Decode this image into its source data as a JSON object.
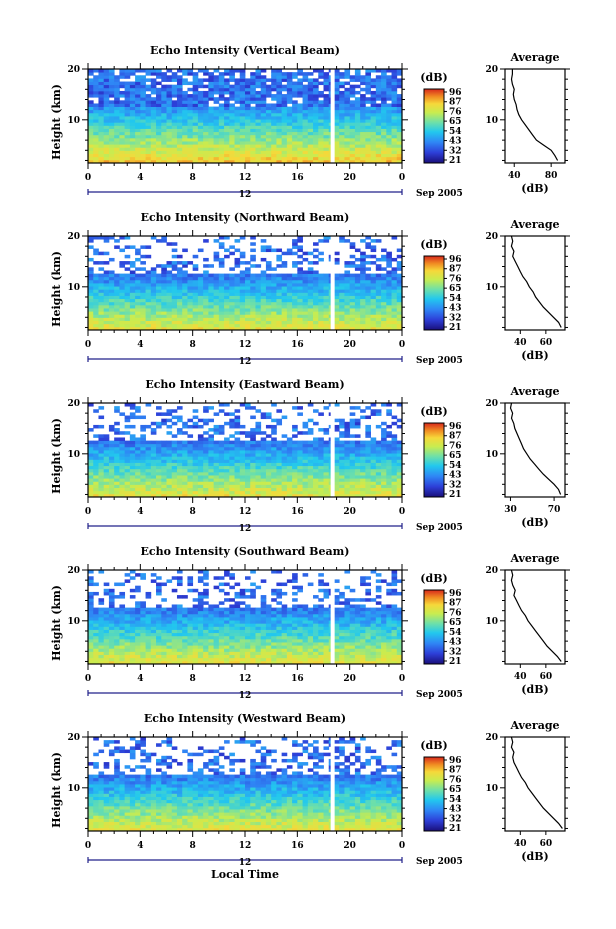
{
  "chart_data": [
    {
      "type": "heatmap",
      "title": "Echo Intensity (Vertical Beam)",
      "ylabel": "Height (km)",
      "y_ticks": [
        "20",
        "10"
      ],
      "x_ticks": [
        "0",
        "4",
        "8",
        "12",
        "16",
        "20",
        "0"
      ],
      "x_ylim_hours": [
        0,
        24
      ],
      "y_lim_km": [
        1.5,
        20
      ],
      "date_tick": "12",
      "date_label": "Sep 2005",
      "colorbar": {
        "label": "(dB)",
        "ticks": [
          "96",
          "87",
          "76",
          "65",
          "54",
          "43",
          "32",
          "21"
        ],
        "range": [
          21,
          96
        ]
      },
      "gap_hour": 18.7,
      "profile": {
        "title": "Average",
        "xlabel": "(dB)",
        "x_ticks": [
          "40",
          "80"
        ],
        "xlim": [
          30,
          95
        ],
        "points": [
          [
            87,
            2
          ],
          [
            84,
            3
          ],
          [
            80,
            4
          ],
          [
            72,
            5
          ],
          [
            64,
            6
          ],
          [
            60,
            7
          ],
          [
            56,
            8
          ],
          [
            52,
            9
          ],
          [
            48,
            10
          ],
          [
            45,
            11
          ],
          [
            43,
            12
          ],
          [
            42,
            13
          ],
          [
            40,
            14
          ],
          [
            39,
            15
          ],
          [
            40,
            16
          ],
          [
            38,
            17
          ],
          [
            37,
            18
          ],
          [
            38,
            19
          ],
          [
            38,
            20
          ]
        ]
      }
    },
    {
      "type": "heatmap",
      "title": "Echo Intensity (Northward Beam)",
      "ylabel": "Height (km)",
      "y_ticks": [
        "20",
        "10"
      ],
      "x_ticks": [
        "0",
        "4",
        "8",
        "12",
        "16",
        "20",
        "0"
      ],
      "x_ylim_hours": [
        0,
        24
      ],
      "y_lim_km": [
        1.5,
        20
      ],
      "date_tick": "12",
      "date_label": "Sep 2005",
      "colorbar": {
        "label": "(dB)",
        "ticks": [
          "96",
          "87",
          "76",
          "65",
          "54",
          "43",
          "32",
          "21"
        ],
        "range": [
          21,
          96
        ]
      },
      "gap_hour": 18.7,
      "profile": {
        "title": "Average",
        "xlabel": "(dB)",
        "x_ticks": [
          "40",
          "60"
        ],
        "xlim": [
          28,
          75
        ],
        "points": [
          [
            72,
            2
          ],
          [
            70,
            3
          ],
          [
            66,
            4
          ],
          [
            62,
            5
          ],
          [
            58,
            6
          ],
          [
            55,
            7
          ],
          [
            52,
            8
          ],
          [
            50,
            9
          ],
          [
            47,
            10
          ],
          [
            45,
            11
          ],
          [
            42,
            12
          ],
          [
            40,
            13
          ],
          [
            38,
            14
          ],
          [
            36,
            15
          ],
          [
            34,
            16
          ],
          [
            35,
            17
          ],
          [
            33,
            18
          ],
          [
            34,
            19
          ],
          [
            33,
            20
          ]
        ]
      }
    },
    {
      "type": "heatmap",
      "title": "Echo Intensity (Eastward Beam)",
      "ylabel": "Height (km)",
      "y_ticks": [
        "20",
        "10"
      ],
      "x_ticks": [
        "0",
        "4",
        "8",
        "12",
        "16",
        "20",
        "0"
      ],
      "x_ylim_hours": [
        0,
        24
      ],
      "y_lim_km": [
        1.5,
        20
      ],
      "date_tick": "12",
      "date_label": "Sep 2005",
      "colorbar": {
        "label": "(dB)",
        "ticks": [
          "96",
          "87",
          "76",
          "65",
          "54",
          "43",
          "32",
          "21"
        ],
        "range": [
          21,
          96
        ]
      },
      "gap_hour": 18.7,
      "profile": {
        "title": "Average",
        "xlabel": "(dB)",
        "x_ticks": [
          "30",
          "70"
        ],
        "xlim": [
          25,
          80
        ],
        "points": [
          [
            76,
            2
          ],
          [
            74,
            3
          ],
          [
            70,
            4
          ],
          [
            65,
            5
          ],
          [
            60,
            6
          ],
          [
            56,
            7
          ],
          [
            52,
            8
          ],
          [
            48,
            9
          ],
          [
            45,
            10
          ],
          [
            42,
            11
          ],
          [
            40,
            12
          ],
          [
            38,
            13
          ],
          [
            36,
            14
          ],
          [
            34,
            15
          ],
          [
            33,
            16
          ],
          [
            31,
            17
          ],
          [
            32,
            18
          ],
          [
            30,
            19
          ],
          [
            31,
            20
          ]
        ]
      }
    },
    {
      "type": "heatmap",
      "title": "Echo Intensity (Southward Beam)",
      "ylabel": "Height (km)",
      "y_ticks": [
        "20",
        "10"
      ],
      "x_ticks": [
        "0",
        "4",
        "8",
        "12",
        "16",
        "20",
        "0"
      ],
      "x_ylim_hours": [
        0,
        24
      ],
      "y_lim_km": [
        1.5,
        20
      ],
      "date_tick": "12",
      "date_label": "Sep 2005",
      "colorbar": {
        "label": "(dB)",
        "ticks": [
          "96",
          "87",
          "76",
          "65",
          "54",
          "43",
          "32",
          "21"
        ],
        "range": [
          21,
          96
        ]
      },
      "gap_hour": 18.7,
      "profile": {
        "title": "Average",
        "xlabel": "(dB)",
        "x_ticks": [
          "40",
          "60"
        ],
        "xlim": [
          28,
          75
        ],
        "points": [
          [
            72,
            2
          ],
          [
            69,
            3
          ],
          [
            65,
            4
          ],
          [
            61,
            5
          ],
          [
            58,
            6
          ],
          [
            55,
            7
          ],
          [
            52,
            8
          ],
          [
            49,
            9
          ],
          [
            46,
            10
          ],
          [
            44,
            11
          ],
          [
            41,
            12
          ],
          [
            39,
            13
          ],
          [
            37,
            14
          ],
          [
            35,
            15
          ],
          [
            36,
            16
          ],
          [
            34,
            17
          ],
          [
            33,
            18
          ],
          [
            34,
            19
          ],
          [
            33,
            20
          ]
        ]
      }
    },
    {
      "type": "heatmap",
      "title": "Echo Intensity (Westward Beam)",
      "ylabel": "Height (km)",
      "y_ticks": [
        "20",
        "10"
      ],
      "x_ticks": [
        "0",
        "4",
        "8",
        "12",
        "16",
        "20",
        "0"
      ],
      "x_ylim_hours": [
        0,
        24
      ],
      "y_lim_km": [
        1.5,
        20
      ],
      "date_tick": "12",
      "date_label": "Sep 2005",
      "xlabel": "Local Time",
      "colorbar": {
        "label": "(dB)",
        "ticks": [
          "96",
          "87",
          "76",
          "65",
          "54",
          "43",
          "32",
          "21"
        ],
        "range": [
          21,
          96
        ]
      },
      "gap_hour": 18.7,
      "profile": {
        "title": "Average",
        "xlabel": "(dB)",
        "x_ticks": [
          "40",
          "60"
        ],
        "xlim": [
          28,
          75
        ],
        "points": [
          [
            73,
            2
          ],
          [
            70,
            3
          ],
          [
            66,
            4
          ],
          [
            62,
            5
          ],
          [
            58,
            6
          ],
          [
            55,
            7
          ],
          [
            52,
            8
          ],
          [
            49,
            9
          ],
          [
            46,
            10
          ],
          [
            44,
            11
          ],
          [
            41,
            12
          ],
          [
            39,
            13
          ],
          [
            37,
            14
          ],
          [
            35,
            15
          ],
          [
            34,
            16
          ],
          [
            35,
            17
          ],
          [
            33,
            18
          ],
          [
            34,
            19
          ],
          [
            33,
            20
          ]
        ]
      }
    }
  ]
}
